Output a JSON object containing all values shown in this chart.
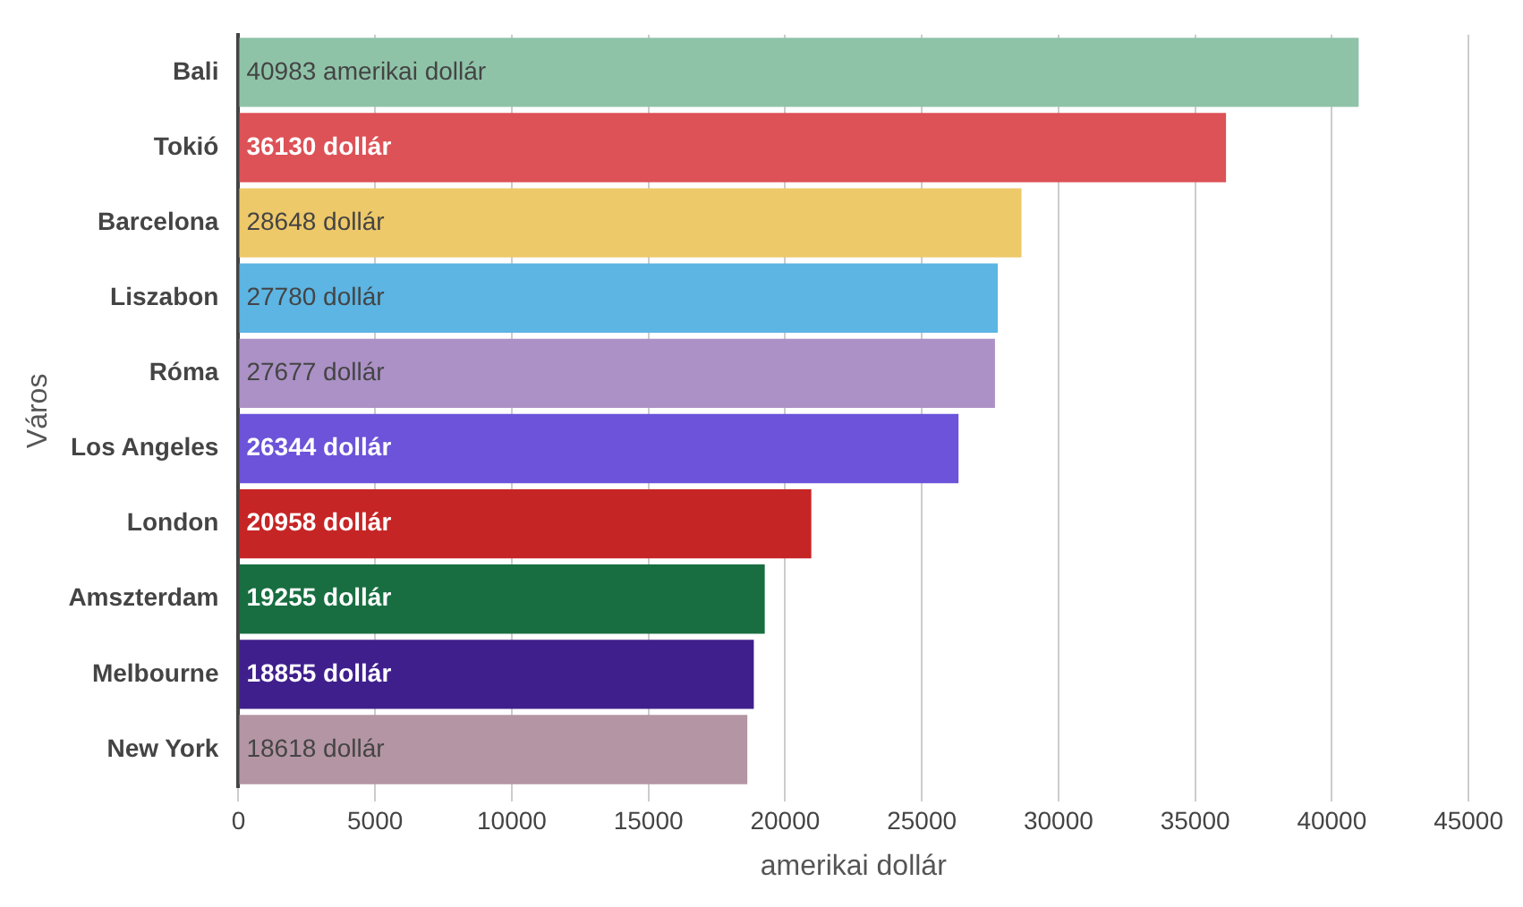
{
  "chart_data": {
    "type": "bar",
    "orientation": "horizontal",
    "xlabel": "amerikai dollár",
    "ylabel": "Város",
    "categories": [
      "Bali",
      "Tokió",
      "Barcelona",
      "Liszabon",
      "Róma",
      "Los Angeles",
      "London",
      "Amszterdam",
      "Melbourne",
      "New York"
    ],
    "values": [
      40983,
      36130,
      28648,
      27780,
      27677,
      26344,
      20958,
      19255,
      18855,
      18618
    ],
    "colors": [
      "#8fc3a8",
      "#dc5257",
      "#eec96a",
      "#5cb5e3",
      "#ab91c6",
      "#6c53d9",
      "#c62526",
      "#186e41",
      "#3f1f8c",
      "#b495a3"
    ],
    "value_labels": [
      "40983 amerikai dollár",
      "36130 dollár",
      "28648 dollár",
      "27780 dollár",
      "27677 dollár",
      "26344 dollár",
      "20958 dollár",
      "19255 dollár",
      "18855 dollár",
      "18618 dollár"
    ],
    "xlim": [
      0,
      45000
    ],
    "xticks": [
      0,
      5000,
      10000,
      15000,
      20000,
      25000,
      30000,
      35000,
      40000,
      45000
    ],
    "grid": "x",
    "legend": false
  }
}
